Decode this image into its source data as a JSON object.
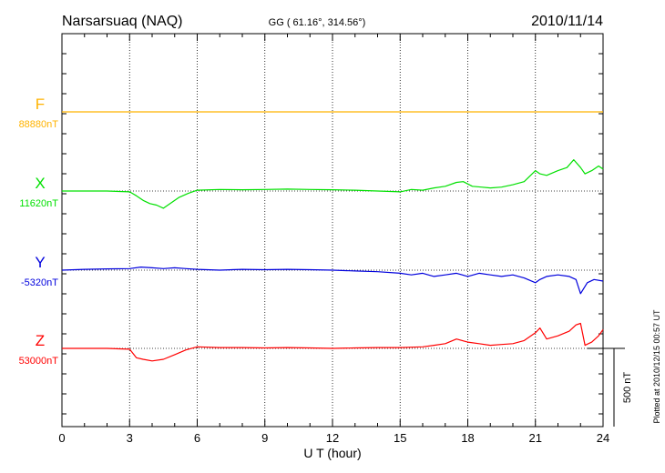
{
  "chart_data": {
    "type": "line",
    "station_title": "Narsarsuaq (NAQ)",
    "coordinates": "GG ( 61.16°, 314.56°)",
    "date": "2010/11/14",
    "xlabel": "U T (hour)",
    "xlim": [
      0,
      24
    ],
    "x_ticks": [
      "0",
      "3",
      "6",
      "9",
      "12",
      "15",
      "18",
      "21",
      "24"
    ],
    "grid": true,
    "scale_label": "500 nT",
    "scale_nT": 500,
    "plotted_note": "Plotted at 2010/12/15 00:57 UT",
    "series": [
      {
        "name": "F",
        "baseline_label": "88880nT",
        "color": "#ffb300",
        "x": [
          0,
          24
        ],
        "values": [
          0,
          0
        ]
      },
      {
        "name": "X",
        "baseline_label": "11620nT",
        "color": "#00e000",
        "x": [
          0,
          1,
          2,
          3,
          3.3,
          3.6,
          3.9,
          4.2,
          4.5,
          4.8,
          5.2,
          5.6,
          6,
          7,
          8,
          9,
          10,
          11,
          12,
          13,
          14,
          15,
          15.5,
          16,
          16.5,
          17,
          17.5,
          17.8,
          18.2,
          18.6,
          19,
          19.5,
          20,
          20.5,
          21,
          21.2,
          21.5,
          22,
          22.4,
          22.7,
          23,
          23.2,
          23.5,
          23.8,
          24
        ],
        "values": [
          0,
          0,
          0,
          -5,
          -30,
          -60,
          -80,
          -90,
          -110,
          -80,
          -40,
          -15,
          5,
          10,
          8,
          10,
          12,
          10,
          8,
          5,
          0,
          -5,
          10,
          5,
          20,
          30,
          55,
          60,
          30,
          25,
          20,
          25,
          40,
          60,
          130,
          110,
          100,
          130,
          150,
          200,
          150,
          110,
          130,
          160,
          140
        ]
      },
      {
        "name": "Y",
        "baseline_label": "-5320nT",
        "color": "#0000dd",
        "x": [
          0,
          1,
          2,
          3,
          3.5,
          4,
          4.5,
          5,
          5.5,
          6,
          7,
          8,
          9,
          10,
          11,
          12,
          13,
          14,
          15,
          15.5,
          16,
          16.5,
          17,
          17.5,
          18,
          18.5,
          19,
          19.5,
          20,
          20.5,
          21,
          21.2,
          21.5,
          22,
          22.5,
          22.8,
          23,
          23.3,
          23.6,
          24
        ],
        "values": [
          0,
          5,
          8,
          10,
          20,
          15,
          10,
          15,
          10,
          5,
          0,
          5,
          3,
          5,
          3,
          0,
          -5,
          -10,
          -20,
          -30,
          -20,
          -40,
          -30,
          -20,
          -40,
          -20,
          -30,
          -40,
          -30,
          -50,
          -80,
          -60,
          -40,
          -30,
          -40,
          -60,
          -150,
          -80,
          -60,
          -70
        ]
      },
      {
        "name": "Z",
        "baseline_label": "53000nT",
        "color": "#ff0000",
        "x": [
          0,
          1,
          2,
          3,
          3.3,
          3.6,
          4,
          4.5,
          5,
          5.5,
          6,
          7,
          8,
          9,
          10,
          11,
          12,
          13,
          14,
          15,
          16,
          16.5,
          17,
          17.5,
          18,
          18.5,
          19,
          19.5,
          20,
          20.5,
          21,
          21.2,
          21.5,
          22,
          22.5,
          22.8,
          23,
          23.2,
          23.5,
          23.8,
          24
        ],
        "values": [
          0,
          0,
          0,
          -5,
          -60,
          -70,
          -80,
          -70,
          -40,
          -10,
          10,
          5,
          5,
          3,
          5,
          3,
          0,
          3,
          5,
          5,
          10,
          20,
          30,
          60,
          40,
          30,
          20,
          25,
          30,
          50,
          100,
          130,
          60,
          80,
          110,
          150,
          160,
          20,
          40,
          80,
          120
        ]
      }
    ]
  }
}
